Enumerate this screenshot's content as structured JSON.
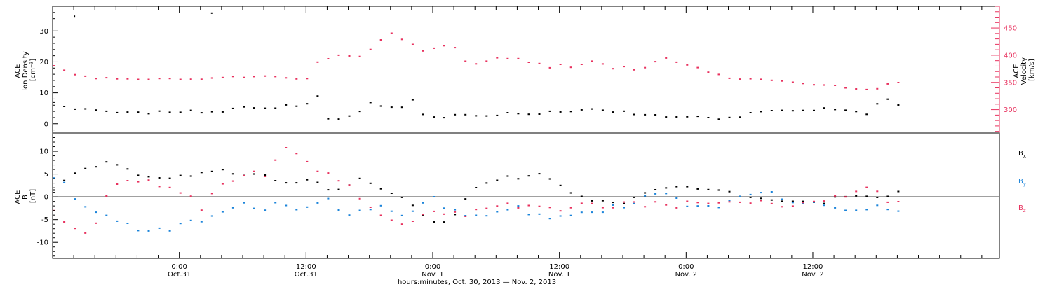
{
  "chart_data": [
    {
      "type": "scatter",
      "panel": "plasma",
      "left_ylabel_lines": [
        "ACE",
        "Ion Density",
        "[cm⁻³]"
      ],
      "right_ylabel_lines": [
        "ACE",
        "Velocity",
        "[km/s]"
      ],
      "left_ylim": [
        -3,
        38
      ],
      "left_yticks": [
        0,
        10,
        20,
        30
      ],
      "right_ylim": [
        257,
        490
      ],
      "right_yticks": [
        300,
        350,
        400,
        450
      ],
      "xlim": [
        0,
        89.67
      ],
      "series": [
        {
          "axis": "left",
          "color": "#000000",
          "x": [
            0,
            1,
            2,
            3,
            4,
            5,
            6,
            7,
            8,
            9,
            10,
            11,
            12,
            13,
            14,
            15,
            16,
            17,
            18,
            19,
            20,
            21,
            22,
            23,
            24,
            25,
            26,
            27,
            28,
            29,
            30,
            31,
            32,
            33,
            34,
            35,
            36,
            37,
            38,
            39,
            40,
            41,
            42,
            43,
            44,
            45,
            46,
            47,
            48,
            49,
            50,
            51,
            52,
            53,
            54,
            55,
            56,
            57,
            58,
            59,
            60,
            61,
            62,
            63,
            64,
            65,
            66,
            67,
            68,
            69,
            70,
            71,
            72,
            73,
            74,
            75,
            76,
            77,
            78,
            79,
            80
          ],
          "y": [
            7,
            6,
            5,
            5,
            4.5,
            4.5,
            4,
            4,
            4,
            3.5,
            4,
            4,
            4,
            4.5,
            4,
            4,
            4,
            5,
            6,
            5.5,
            5.5,
            5.5,
            6,
            6,
            7,
            9,
            2,
            1.5,
            3,
            4,
            7,
            6,
            5.5,
            5.5,
            8,
            3,
            2.5,
            2.5,
            3,
            3,
            3,
            3,
            3,
            3.5,
            3.5,
            3.5,
            3.5,
            4,
            4,
            4.5,
            5,
            5,
            4.5,
            4,
            4,
            3.5,
            3,
            3,
            2.5,
            2.5,
            2.5,
            2.5,
            2.5,
            2,
            2,
            2.5,
            3.5,
            4.5,
            4.5,
            4.5,
            4.5,
            4.5,
            4.5,
            5,
            5,
            4.5,
            4,
            3.5,
            7,
            8,
            6
          ]
        },
        {
          "axis": "right",
          "color": "#E8315E",
          "x": [
            0,
            1,
            2,
            3,
            4,
            5,
            6,
            7,
            8,
            9,
            10,
            11,
            12,
            13,
            14,
            15,
            16,
            17,
            18,
            19,
            20,
            21,
            22,
            23,
            24,
            25,
            26,
            27,
            28,
            29,
            30,
            31,
            32,
            33,
            34,
            35,
            36,
            37,
            38,
            39,
            40,
            41,
            42,
            43,
            44,
            45,
            46,
            47,
            48,
            49,
            50,
            51,
            52,
            53,
            54,
            55,
            56,
            57,
            58,
            59,
            60,
            61,
            62,
            63,
            64,
            65,
            66,
            67,
            68,
            69,
            70,
            71,
            72,
            73,
            74,
            75,
            76,
            77,
            78,
            79,
            80
          ],
          "y": [
            380,
            372,
            365,
            362,
            360,
            360,
            358,
            358,
            357,
            357,
            358,
            360,
            358,
            356,
            358,
            360,
            362,
            362,
            362,
            362,
            363,
            362,
            358,
            356,
            358,
            390,
            395,
            400,
            400,
            400,
            410,
            430,
            440,
            430,
            420,
            410,
            415,
            420,
            415,
            390,
            385,
            390,
            395,
            395,
            395,
            390,
            385,
            380,
            385,
            380,
            385,
            390,
            385,
            375,
            380,
            375,
            380,
            390,
            395,
            390,
            385,
            380,
            370,
            365,
            360,
            358,
            358,
            356,
            356,
            355,
            352,
            350,
            348,
            348,
            345,
            343,
            340,
            337,
            340,
            350,
            350
          ]
        }
      ],
      "isolated_points_left": [
        [
          2,
          35
        ],
        [
          15,
          36
        ]
      ]
    },
    {
      "type": "scatter",
      "panel": "magnetic_field",
      "ylabel_lines": [
        "ACE",
        "B",
        "[nT]"
      ],
      "ylim": [
        -13.5,
        14
      ],
      "yticks": [
        -10,
        -5,
        0,
        5,
        10
      ],
      "xlim": [
        0,
        89.67
      ],
      "zero_line": true,
      "legend_position": "right",
      "series": [
        {
          "name": "Bx",
          "color": "#000000",
          "x": [
            0,
            1,
            2,
            3,
            4,
            5,
            6,
            7,
            8,
            9,
            10,
            11,
            12,
            13,
            14,
            15,
            16,
            17,
            18,
            19,
            20,
            21,
            22,
            23,
            24,
            25,
            26,
            27,
            28,
            29,
            30,
            31,
            32,
            33,
            34,
            35,
            36,
            37,
            38,
            39,
            40,
            41,
            42,
            43,
            44,
            45,
            46,
            47,
            48,
            49,
            50,
            51,
            52,
            53,
            54,
            55,
            56,
            57,
            58,
            59,
            60,
            61,
            62,
            63,
            64,
            65,
            66,
            67,
            68,
            69,
            70,
            71,
            72,
            73,
            74,
            75,
            76,
            77,
            78,
            79,
            80
          ],
          "y": [
            2,
            4,
            5,
            6,
            7,
            7.5,
            7,
            6,
            5,
            4.5,
            4.5,
            4.5,
            5,
            5,
            5.5,
            6,
            6,
            5.5,
            5,
            5.5,
            5,
            4,
            3,
            3,
            4,
            3,
            2,
            2,
            3,
            4,
            3,
            2,
            1,
            0,
            -2,
            -4,
            -5,
            -5,
            -4,
            0,
            2,
            3,
            4,
            4.5,
            4.5,
            5,
            5,
            4,
            3,
            1,
            0,
            -0.5,
            -0.5,
            -1,
            -1,
            0,
            1,
            1.5,
            2,
            2.5,
            2.5,
            2,
            2,
            1.5,
            1,
            0.5,
            0,
            0,
            -0.5,
            -1,
            -1,
            -1,
            -1,
            -1,
            0,
            0,
            0.5,
            0.5,
            0,
            0,
            1
          ]
        },
        {
          "name": "By",
          "color": "#1B84DA",
          "x": [
            0,
            1,
            2,
            3,
            4,
            5,
            6,
            7,
            8,
            9,
            10,
            11,
            12,
            13,
            14,
            15,
            16,
            17,
            18,
            19,
            20,
            21,
            22,
            23,
            24,
            25,
            26,
            27,
            28,
            29,
            30,
            31,
            32,
            33,
            34,
            35,
            36,
            37,
            38,
            39,
            40,
            41,
            42,
            43,
            44,
            45,
            46,
            47,
            48,
            49,
            50,
            51,
            52,
            53,
            54,
            55,
            56,
            57,
            58,
            59,
            60,
            61,
            62,
            63,
            64,
            65,
            66,
            67,
            68,
            69,
            70,
            71,
            72,
            73,
            74,
            75,
            76,
            77,
            78,
            79,
            80
          ],
          "y": [
            4,
            3,
            0,
            -2,
            -3,
            -4,
            -5,
            -6,
            -7,
            -7,
            -7,
            -7,
            -6,
            -5,
            -5,
            -4,
            -3,
            -2,
            -1,
            -2,
            -3,
            -1,
            -2,
            -3,
            -2,
            -1,
            0,
            -3,
            -4,
            -3,
            -3,
            -2,
            -3,
            -4,
            -3,
            -1,
            0,
            -2,
            -3,
            -4,
            -4,
            -4,
            -3,
            -3,
            -2,
            -4,
            -4,
            -5,
            -4,
            -4,
            -3,
            -3,
            -3,
            -2,
            -2,
            -1,
            0,
            1,
            1,
            0,
            -2,
            -2,
            -2,
            -2,
            -1,
            0,
            1,
            1,
            1,
            0,
            -1,
            -1,
            -1,
            -2,
            -2,
            -3,
            -3,
            -3,
            -2,
            -3,
            -3
          ]
        },
        {
          "name": "Bz",
          "color": "#E8315E",
          "x": [
            0,
            1,
            2,
            3,
            4,
            5,
            6,
            7,
            8,
            9,
            10,
            11,
            12,
            13,
            14,
            15,
            16,
            17,
            18,
            19,
            20,
            21,
            22,
            23,
            24,
            25,
            26,
            27,
            28,
            29,
            30,
            31,
            32,
            33,
            34,
            35,
            36,
            37,
            38,
            39,
            40,
            41,
            42,
            43,
            44,
            45,
            46,
            47,
            48,
            49,
            50,
            51,
            52,
            53,
            54,
            55,
            56,
            57,
            58,
            59,
            60,
            61,
            62,
            63,
            64,
            65,
            66,
            67,
            68,
            69,
            70,
            71,
            72,
            73,
            74,
            75,
            76,
            77,
            78,
            79,
            80
          ],
          "y": [
            -3,
            -5,
            -7,
            -8,
            -6,
            0,
            3,
            4,
            3.5,
            3.5,
            2.5,
            2,
            1,
            0,
            -3,
            1,
            3,
            4,
            5,
            6,
            5,
            8,
            11,
            10,
            8,
            6,
            5,
            4,
            3,
            0,
            -2,
            -4,
            -5,
            -6,
            -5,
            -4,
            -3,
            -4,
            -3,
            -4,
            -3,
            -2,
            -2,
            -1,
            -2,
            -2,
            -2,
            -2,
            -3,
            -2,
            -1,
            -1,
            -2,
            -2,
            -1,
            -1,
            -2,
            -1,
            -2,
            -2,
            -1,
            -1,
            -1,
            -1,
            -1,
            -1,
            -1,
            -1,
            -1,
            -2,
            -2,
            -1,
            -1,
            -1,
            0,
            0,
            1,
            2,
            1,
            -1,
            -1
          ]
        }
      ]
    }
  ],
  "legend": {
    "bx": {
      "base": "B",
      "sub": "x"
    },
    "by": {
      "base": "B",
      "sub": "y"
    },
    "bz": {
      "base": "B",
      "sub": "z"
    }
  },
  "x_axis": {
    "major_ticks": [
      {
        "x": 12,
        "time": "0:00",
        "date": "Oct.31"
      },
      {
        "x": 24,
        "time": "12:00",
        "date": "Oct.31"
      },
      {
        "x": 36,
        "time": "0:00",
        "date": "Nov. 1"
      },
      {
        "x": 48,
        "time": "12:00",
        "date": "Nov. 1"
      },
      {
        "x": 60,
        "time": "0:00",
        "date": "Nov. 2"
      },
      {
        "x": 72,
        "time": "12:00",
        "date": "Nov. 2"
      }
    ],
    "minor_step": 2,
    "caption": "hours:minutes, Oct. 30, 2013 — Nov.  2, 2013"
  },
  "colors": {
    "black": "#000000",
    "pink": "#E8315E",
    "blue": "#1B84DA"
  }
}
